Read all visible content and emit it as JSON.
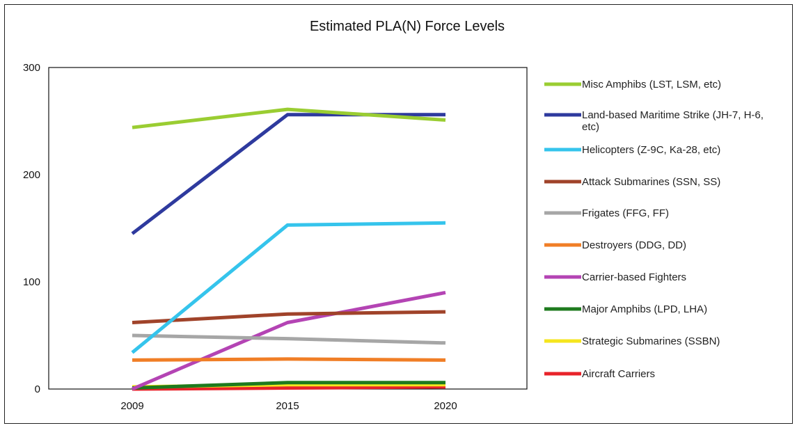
{
  "chart_data": {
    "type": "line",
    "title": "Estimated PLA(N) Force Levels",
    "xlabel": "",
    "ylabel": "",
    "categories": [
      "2009",
      "2015",
      "2020"
    ],
    "ylim": [
      0,
      300
    ],
    "yticks": [
      "0",
      "100",
      "200",
      "300"
    ],
    "grid": false,
    "legend_position": "right",
    "series": [
      {
        "name": "Misc Amphibs (LST, LSM, etc)",
        "color": "#9ACD32",
        "values": [
          244,
          261,
          251
        ]
      },
      {
        "name": "Land-based Maritime Strike (JH-7, H-6, etc)",
        "color": "#2E3A9E",
        "values": [
          145,
          256,
          256
        ]
      },
      {
        "name": "Helicopters (Z-9C, Ka-28, etc)",
        "color": "#35C4EC",
        "values": [
          34,
          153,
          155
        ]
      },
      {
        "name": "Attack Submarines (SSN, SS)",
        "color": "#A0432A",
        "values": [
          62,
          70,
          72
        ]
      },
      {
        "name": "Frigates (FFG, FF)",
        "color": "#A6A6A6",
        "values": [
          50,
          47,
          43
        ]
      },
      {
        "name": "Destroyers (DDG, DD)",
        "color": "#F07E26",
        "values": [
          27,
          28,
          27
        ]
      },
      {
        "name": "Carrier-based Fighters",
        "color": "#B444B4",
        "values": [
          0,
          62,
          90
        ]
      },
      {
        "name": "Major Amphibs (LPD, LHA)",
        "color": "#1E7A1E",
        "values": [
          1,
          6,
          6
        ]
      },
      {
        "name": "Strategic Submarines (SSBN)",
        "color": "#F5E61E",
        "values": [
          2,
          4,
          4
        ]
      },
      {
        "name": "Aircraft Carriers",
        "color": "#E8232A",
        "values": [
          0,
          1,
          2
        ]
      }
    ]
  }
}
